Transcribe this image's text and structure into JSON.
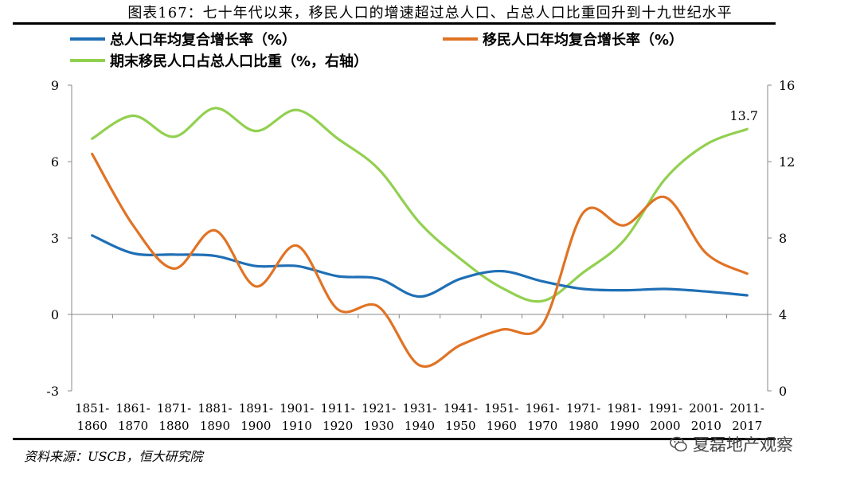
{
  "figure_title": "图表167：七十年代以来，移民人口的增速超过总人口、占总人口比重回升到十九世纪水平",
  "source_note": "资料来源：USCB，恒大研究院",
  "watermark": "夏磊地产观察",
  "colors": {
    "total": "#1f6fb5",
    "immigrant": "#e07325",
    "share": "#92d050"
  },
  "chart_data": {
    "type": "line",
    "title": "七十年代以来，移民人口的增速超过总人口、占总人口比重回升到十九世纪水平",
    "categories": [
      "1851-1860",
      "1861-1870",
      "1871-1880",
      "1881-1890",
      "1891-1900",
      "1901-1910",
      "1911-1920",
      "1921-1930",
      "1931-1940",
      "1941-1950",
      "1951-1960",
      "1961-1970",
      "1971-1980",
      "1981-1990",
      "1991-2000",
      "2001-2010",
      "2011-2017"
    ],
    "category_labels": [
      [
        "1851-",
        "1860"
      ],
      [
        "1861-",
        "1870"
      ],
      [
        "1871-",
        "1880"
      ],
      [
        "1881-",
        "1890"
      ],
      [
        "1891-",
        "1900"
      ],
      [
        "1901-",
        "1910"
      ],
      [
        "1911-",
        "1920"
      ],
      [
        "1921-",
        "1930"
      ],
      [
        "1931-",
        "1940"
      ],
      [
        "1941-",
        "1950"
      ],
      [
        "1951-",
        "1960"
      ],
      [
        "1961-",
        "1970"
      ],
      [
        "1971-",
        "1980"
      ],
      [
        "1981-",
        "1990"
      ],
      [
        "1991-",
        "2000"
      ],
      [
        "2001-",
        "2010"
      ],
      [
        "2011-",
        "2017"
      ]
    ],
    "left_axis": {
      "min": -3,
      "max": 9,
      "ticks": [
        -3,
        0,
        3,
        6,
        9
      ]
    },
    "right_axis": {
      "min": 0,
      "max": 16,
      "ticks": [
        0,
        4,
        8,
        12,
        16
      ]
    },
    "series": [
      {
        "name": "总人口年均复合增长率（%）",
        "axis": "left",
        "color_key": "total",
        "values": [
          3.1,
          2.4,
          2.35,
          2.3,
          1.9,
          1.9,
          1.5,
          1.4,
          0.7,
          1.4,
          1.7,
          1.3,
          1.0,
          0.95,
          1.0,
          0.9,
          0.75
        ]
      },
      {
        "name": "移民人口年均复合增长率（%）",
        "axis": "left",
        "color_key": "immigrant",
        "values": [
          6.3,
          3.5,
          1.8,
          3.3,
          1.1,
          2.7,
          0.2,
          0.3,
          -2.0,
          -1.2,
          -0.6,
          -0.4,
          4.0,
          3.5,
          4.6,
          2.4,
          1.6
        ]
      },
      {
        "name": "期末移民人口占总人口比重（%，右轴）",
        "axis": "right",
        "color_key": "share",
        "values": [
          13.2,
          14.4,
          13.3,
          14.8,
          13.6,
          14.7,
          13.2,
          11.6,
          8.8,
          6.9,
          5.4,
          4.7,
          6.2,
          7.9,
          11.1,
          12.9,
          13.7
        ]
      }
    ],
    "annotations": [
      {
        "series": 2,
        "index": 16,
        "text": "13.7"
      }
    ]
  }
}
